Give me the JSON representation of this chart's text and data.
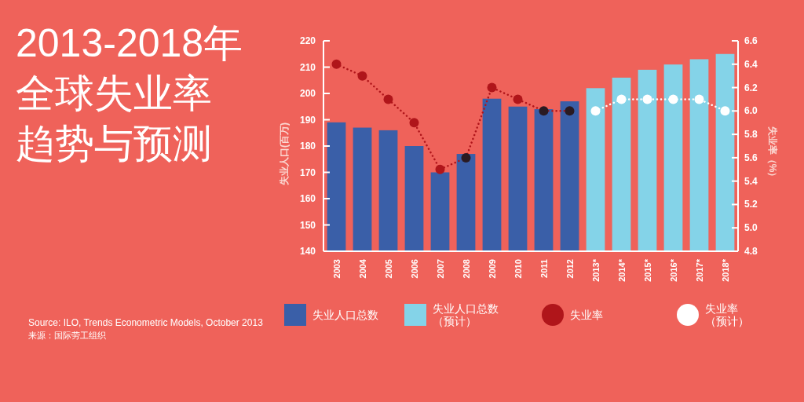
{
  "chart_data": {
    "type": "bar",
    "title": "2013-2018年全球失业率趋势与预测",
    "categories": [
      "2003",
      "2004",
      "2005",
      "2006",
      "2007",
      "2008",
      "2009",
      "2010",
      "2011",
      "2012",
      "2013*",
      "2014*",
      "2015*",
      "2016*",
      "2017*",
      "2018*"
    ],
    "ylabel": "失业人口(百万)",
    "y2label": "失业率（%）",
    "ylim": [
      140,
      220
    ],
    "yticks": [
      140,
      150,
      160,
      170,
      180,
      190,
      200,
      210,
      220
    ],
    "y2lim": [
      4.8,
      6.6
    ],
    "y2ticks": [
      {
        "value": 4.8,
        "label": "4.8"
      },
      {
        "value": 5.0,
        "label": "5.0"
      },
      {
        "value": 5.2,
        "label": "5.2"
      },
      {
        "value": 5.4,
        "label": "5.4"
      },
      {
        "value": 5.6,
        "label": "5.6"
      },
      {
        "value": 5.8,
        "label": "5.8"
      },
      {
        "value": 6.0,
        "label": "6.0"
      },
      {
        "value": 6.2,
        "label": "6.2"
      },
      {
        "value": 6.4,
        "label": "6.4"
      },
      {
        "value": 6.6,
        "label": "6.6"
      }
    ],
    "series": [
      {
        "name": "失业人口总数",
        "color": "#3a5fa8",
        "values": [
          189,
          187,
          186,
          180,
          170,
          177,
          198,
          195,
          194,
          197,
          null,
          null,
          null,
          null,
          null,
          null
        ]
      },
      {
        "name": "失业人口总数（预计）",
        "color": "#84d3e8",
        "values": [
          null,
          null,
          null,
          null,
          null,
          null,
          null,
          null,
          null,
          null,
          202,
          206,
          209,
          211,
          213,
          215
        ]
      },
      {
        "name": "失业率",
        "type": "line",
        "axis": "y2",
        "color": "#b0151a",
        "marker": "circle",
        "line_style": "dotted",
        "colors": [
          "#b0151a",
          "#b0151a",
          "#b0151a",
          "#b0151a",
          "#b0151a",
          "#2a1a22",
          "#b0151a",
          "#b0151a",
          "#2a1a22",
          "#2a1a22",
          null,
          null,
          null,
          null,
          null,
          null
        ],
        "values": [
          6.4,
          6.3,
          6.1,
          5.9,
          5.5,
          5.6,
          6.2,
          6.1,
          6.0,
          6.0,
          null,
          null,
          null,
          null,
          null,
          null
        ]
      },
      {
        "name": "失业率（预计）",
        "type": "line",
        "axis": "y2",
        "color": "#ffffff",
        "marker": "circle",
        "line_style": "dotted",
        "values": [
          null,
          null,
          null,
          null,
          null,
          null,
          null,
          null,
          null,
          null,
          6.0,
          6.1,
          6.1,
          6.1,
          6.1,
          6.0
        ]
      }
    ],
    "legend": "bottom",
    "grid": false,
    "annotations": [
      "Source: ILO, Trends Econometric Models, October 2013",
      "来源：国际劳工组织"
    ]
  }
}
